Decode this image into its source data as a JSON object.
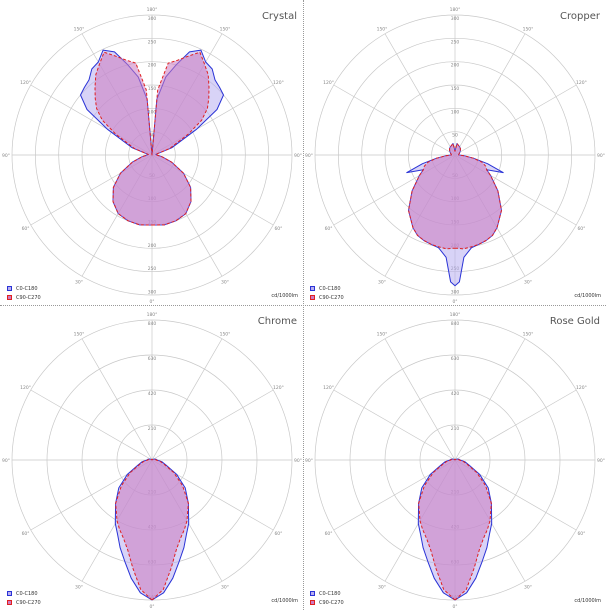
{
  "chart_data": [
    {
      "type": "polar",
      "title": "Crystal",
      "unit": "cd/1000lm",
      "radial_ticks": [
        "300",
        "250",
        "200",
        "150",
        "100",
        "50"
      ],
      "rmax": 300,
      "angle_labels": [
        "0°",
        "30°",
        "60°",
        "90°",
        "120°",
        "150°",
        "180°"
      ],
      "series": [
        {
          "name": "C0-C180",
          "color": "#2a33d6",
          "fill": "#b8aef0",
          "dashed": false,
          "angles": [
            0,
            10,
            20,
            30,
            40,
            50,
            60,
            70,
            80,
            90,
            100,
            110,
            120,
            125,
            130,
            135,
            140,
            145,
            150,
            155,
            160,
            165,
            170,
            175,
            180
          ],
          "values": [
            150,
            152,
            150,
            145,
            130,
            108,
            78,
            45,
            22,
            10,
            8,
            45,
            110,
            170,
            200,
            205,
            210,
            225,
            230,
            248,
            235,
            200,
            170,
            120,
            0
          ]
        },
        {
          "name": "C90-C270",
          "color": "#e02020",
          "fill": "#cc7ac0",
          "dashed": true,
          "angles": [
            0,
            10,
            20,
            30,
            40,
            50,
            60,
            70,
            80,
            90,
            100,
            110,
            120,
            125,
            130,
            135,
            140,
            145,
            150,
            155,
            160,
            165,
            170,
            175,
            180
          ],
          "values": [
            150,
            152,
            150,
            145,
            130,
            108,
            78,
            45,
            22,
            10,
            8,
            40,
            90,
            130,
            155,
            172,
            190,
            210,
            225,
            243,
            225,
            210,
            200,
            140,
            0
          ]
        }
      ]
    },
    {
      "type": "polar",
      "title": "Cropper",
      "unit": "cd/1000lm",
      "radial_ticks": [
        "300",
        "250",
        "200",
        "150",
        "100",
        "50"
      ],
      "rmax": 300,
      "angle_labels": [
        "0°",
        "30°",
        "60°",
        "90°",
        "120°",
        "150°",
        "180°"
      ],
      "series": [
        {
          "name": "C0-C180",
          "color": "#2a33d6",
          "fill": "#b8aef0",
          "dashed": false,
          "angles": [
            0,
            2,
            5,
            10,
            15,
            20,
            25,
            30,
            40,
            50,
            60,
            65,
            70,
            75,
            80,
            85,
            90,
            100,
            110,
            120,
            130,
            140,
            150,
            160,
            170,
            180
          ],
          "values": [
            280,
            272,
            220,
            202,
            198,
            195,
            190,
            180,
            155,
            120,
            88,
            75,
            110,
            72,
            40,
            20,
            8,
            8,
            10,
            12,
            15,
            18,
            20,
            22,
            25,
            8
          ]
        },
        {
          "name": "C90-C270",
          "color": "#e02020",
          "fill": "#cc7ac0",
          "dashed": true,
          "angles": [
            0,
            2,
            5,
            10,
            15,
            20,
            25,
            30,
            40,
            50,
            60,
            65,
            70,
            75,
            80,
            85,
            90,
            100,
            110,
            120,
            130,
            140,
            150,
            160,
            170,
            180
          ],
          "values": [
            200,
            200,
            202,
            200,
            198,
            195,
            190,
            180,
            155,
            120,
            88,
            75,
            70,
            60,
            40,
            20,
            8,
            8,
            10,
            12,
            15,
            18,
            20,
            22,
            25,
            8
          ]
        }
      ]
    },
    {
      "type": "polar",
      "title": "Chrome",
      "unit": "cd/1000lm",
      "radial_ticks": [
        "840",
        "630",
        "420",
        "210"
      ],
      "rmax": 840,
      "angle_labels": [
        "0°",
        "30°",
        "60°",
        "90°",
        "120°",
        "150°",
        "180°"
      ],
      "series": [
        {
          "name": "C0-C180",
          "color": "#2a33d6",
          "fill": "#b8aef0",
          "dashed": false,
          "angles": [
            0,
            5,
            10,
            15,
            20,
            25,
            30,
            40,
            50,
            60,
            70,
            80,
            90,
            100,
            110,
            120,
            140,
            160,
            180
          ],
          "values": [
            840,
            800,
            720,
            630,
            560,
            490,
            440,
            340,
            260,
            170,
            90,
            60,
            30,
            25,
            15,
            10,
            5,
            2,
            0
          ]
        },
        {
          "name": "C90-C270",
          "color": "#e02020",
          "fill": "#cc7ac0",
          "dashed": true,
          "angles": [
            0,
            5,
            10,
            15,
            20,
            25,
            30,
            40,
            50,
            60,
            70,
            80,
            90,
            100,
            110,
            120,
            140,
            160,
            180
          ],
          "values": [
            840,
            780,
            660,
            560,
            500,
            460,
            420,
            340,
            240,
            150,
            80,
            50,
            25,
            20,
            12,
            8,
            4,
            2,
            0
          ]
        }
      ]
    },
    {
      "type": "polar",
      "title": "Rose Gold",
      "unit": "cd/1000lm",
      "radial_ticks": [
        "840",
        "630",
        "420",
        "210"
      ],
      "rmax": 840,
      "angle_labels": [
        "0°",
        "30°",
        "60°",
        "90°",
        "120°",
        "150°",
        "180°"
      ],
      "series": [
        {
          "name": "C0-C180",
          "color": "#2a33d6",
          "fill": "#b8aef0",
          "dashed": false,
          "angles": [
            0,
            5,
            10,
            15,
            20,
            25,
            30,
            40,
            50,
            60,
            70,
            80,
            90,
            100,
            110,
            120,
            140,
            160,
            180
          ],
          "values": [
            840,
            800,
            720,
            630,
            560,
            490,
            440,
            340,
            260,
            170,
            90,
            60,
            30,
            25,
            15,
            10,
            5,
            2,
            0
          ]
        },
        {
          "name": "C90-C270",
          "color": "#e02020",
          "fill": "#cc7ac0",
          "dashed": true,
          "angles": [
            0,
            5,
            10,
            15,
            20,
            25,
            30,
            40,
            50,
            60,
            70,
            80,
            90,
            100,
            110,
            120,
            140,
            160,
            180
          ],
          "values": [
            840,
            780,
            660,
            560,
            500,
            460,
            420,
            340,
            240,
            150,
            80,
            50,
            25,
            20,
            12,
            8,
            4,
            2,
            0
          ]
        }
      ]
    }
  ]
}
